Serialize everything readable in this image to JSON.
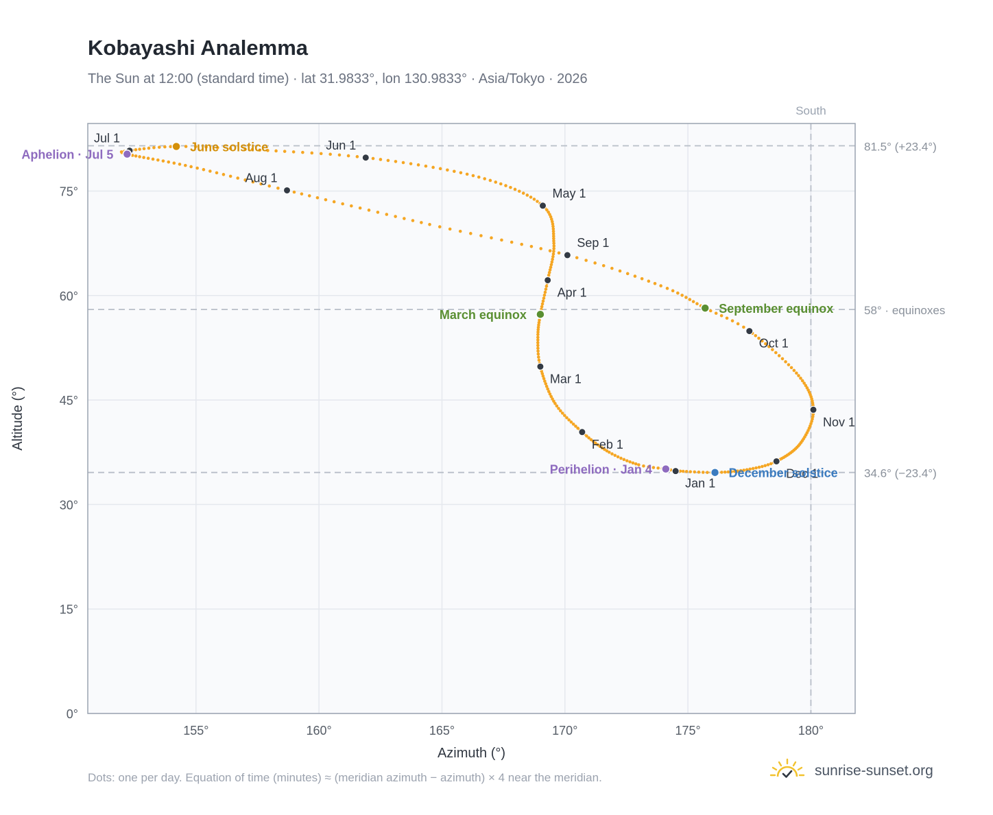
{
  "header": {
    "title": "Kobayashi Analemma",
    "subtitle": "The Sun at 12:00 (standard time) · lat 31.9833°, lon 130.9833° · Asia/Tokyo · 2026"
  },
  "footer": {
    "note": "Dots: one per day. Equation of time (minutes) ≈ (meridian azimuth − azimuth) × 4 near the meridian.",
    "brand": "sunrise-sunset.org",
    "brand_icon": "sun-check-icon"
  },
  "colors": {
    "curve": "#f5a623",
    "month_dot": "#333a44",
    "solstice_june": "#d4900a",
    "equinox": "#5a8f32",
    "solstice_december": "#3b7bbf",
    "aphelion_perihelion": "#8e6bbf",
    "plot_bg": "#f9fafc",
    "grid": "#e5e8ee",
    "frame": "#9aa3b0",
    "ref_line": "#b8bec8"
  },
  "chart_data": {
    "type": "scatter",
    "xlabel": "Azimuth (°)",
    "ylabel": "Altitude (°)",
    "xlim": [
      150.6,
      181.8
    ],
    "ylim": [
      0,
      84.7
    ],
    "xticks": [
      155,
      160,
      165,
      170,
      175,
      180
    ],
    "xtick_labels": [
      "155°",
      "160°",
      "165°",
      "170°",
      "175°",
      "180°"
    ],
    "yticks": [
      0,
      15,
      30,
      45,
      60,
      75
    ],
    "ytick_labels": [
      "0°",
      "15°",
      "30°",
      "45°",
      "60°",
      "75°"
    ],
    "grid": true,
    "reference_lines": {
      "vertical": [
        {
          "x": 180,
          "label": "South"
        }
      ],
      "horizontal": [
        {
          "y": 81.5,
          "label": "81.5° (+23.4°)"
        },
        {
          "y": 58.0,
          "label": "58° · equinoxes"
        },
        {
          "y": 34.6,
          "label": "34.6° (−23.4°)"
        }
      ]
    },
    "series": [
      {
        "kind": "daily-analemma",
        "keypoints": [
          {
            "doy": 1,
            "az": 174.5,
            "alt": 34.8
          },
          {
            "doy": 4,
            "az": 174.1,
            "alt": 35.1
          },
          {
            "doy": 10,
            "az": 173.0,
            "alt": 35.7
          },
          {
            "doy": 20,
            "az": 171.8,
            "alt": 37.5
          },
          {
            "doy": 32,
            "az": 170.7,
            "alt": 40.4
          },
          {
            "doy": 45,
            "az": 169.6,
            "alt": 44.5
          },
          {
            "doy": 60,
            "az": 169.0,
            "alt": 49.8
          },
          {
            "doy": 70,
            "az": 168.9,
            "alt": 54.0
          },
          {
            "doy": 79,
            "az": 169.0,
            "alt": 57.3
          },
          {
            "doy": 91,
            "az": 169.3,
            "alt": 62.2
          },
          {
            "doy": 105,
            "az": 169.55,
            "alt": 67.5
          },
          {
            "doy": 121,
            "az": 169.1,
            "alt": 72.9
          },
          {
            "doy": 136,
            "az": 166.5,
            "alt": 77.0
          },
          {
            "doy": 152,
            "az": 161.9,
            "alt": 79.8
          },
          {
            "doy": 166,
            "az": 157.0,
            "alt": 81.0
          },
          {
            "doy": 172,
            "az": 154.2,
            "alt": 81.4
          },
          {
            "doy": 182,
            "az": 152.3,
            "alt": 80.8
          },
          {
            "doy": 186,
            "az": 152.2,
            "alt": 80.3
          },
          {
            "doy": 200,
            "az": 154.8,
            "alt": 78.5
          },
          {
            "doy": 213,
            "az": 158.7,
            "alt": 75.1
          },
          {
            "doy": 230,
            "az": 164.5,
            "alt": 70.2
          },
          {
            "doy": 244,
            "az": 170.1,
            "alt": 65.8
          },
          {
            "doy": 256,
            "az": 173.9,
            "alt": 61.4
          },
          {
            "doy": 266,
            "az": 175.7,
            "alt": 58.2
          },
          {
            "doy": 274,
            "az": 177.5,
            "alt": 54.9
          },
          {
            "doy": 290,
            "az": 179.5,
            "alt": 48.5
          },
          {
            "doy": 305,
            "az": 180.1,
            "alt": 43.6
          },
          {
            "doy": 320,
            "az": 179.6,
            "alt": 38.9
          },
          {
            "doy": 335,
            "az": 178.6,
            "alt": 36.2
          },
          {
            "doy": 345,
            "az": 177.4,
            "alt": 35.0
          },
          {
            "doy": 355,
            "az": 176.1,
            "alt": 34.6
          },
          {
            "doy": 365,
            "az": 174.6,
            "alt": 34.8
          }
        ]
      }
    ],
    "month_markers": [
      {
        "label": "Jan 1",
        "az": 174.5,
        "alt": 34.8,
        "anchor": "below-right"
      },
      {
        "label": "Feb 1",
        "az": 170.7,
        "alt": 40.4,
        "anchor": "below-right"
      },
      {
        "label": "Mar 1",
        "az": 169.0,
        "alt": 49.8,
        "anchor": "below-right"
      },
      {
        "label": "Apr 1",
        "az": 169.3,
        "alt": 62.2,
        "anchor": "below-right"
      },
      {
        "label": "May 1",
        "az": 169.1,
        "alt": 72.9,
        "anchor": "above-right"
      },
      {
        "label": "Jun 1",
        "az": 161.9,
        "alt": 79.8,
        "anchor": "above-left"
      },
      {
        "label": "Jul 1",
        "az": 152.3,
        "alt": 80.8,
        "anchor": "above-left"
      },
      {
        "label": "Aug 1",
        "az": 158.7,
        "alt": 75.1,
        "anchor": "above-left"
      },
      {
        "label": "Sep 1",
        "az": 170.1,
        "alt": 65.8,
        "anchor": "above-right"
      },
      {
        "label": "Oct 1",
        "az": 177.5,
        "alt": 54.9,
        "anchor": "below-right"
      },
      {
        "label": "Nov 1",
        "az": 180.1,
        "alt": 43.6,
        "anchor": "below-right"
      },
      {
        "label": "Dec 1",
        "az": 178.6,
        "alt": 36.2,
        "anchor": "below-right"
      }
    ],
    "events": [
      {
        "label": "June solstice",
        "az": 154.2,
        "alt": 81.4,
        "color": "#d4900a",
        "side": "right"
      },
      {
        "label": "March equinox",
        "az": 169.0,
        "alt": 57.3,
        "color": "#5a8f32",
        "side": "left"
      },
      {
        "label": "September equinox",
        "az": 175.7,
        "alt": 58.2,
        "color": "#5a8f32",
        "side": "right"
      },
      {
        "label": "December solstice",
        "az": 176.1,
        "alt": 34.6,
        "color": "#3b7bbf",
        "side": "right"
      },
      {
        "label": "Aphelion · Jul 5",
        "az": 152.2,
        "alt": 80.3,
        "color": "#8e6bbf",
        "side": "left"
      },
      {
        "label": "Perihelion · Jan 4",
        "az": 174.1,
        "alt": 35.1,
        "color": "#8e6bbf",
        "side": "left"
      }
    ]
  }
}
